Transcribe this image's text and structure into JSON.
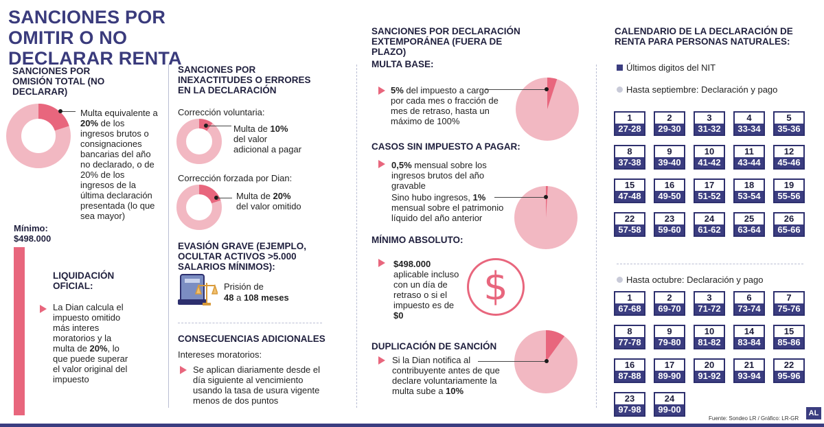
{
  "title": "SANCIONES POR OMITIR O NO DECLARAR RENTA",
  "col1": {
    "heading": "SANCIONES POR OMISIÓN TOTAL (NO DECLARAR)",
    "donut_percent": 20,
    "text_pre": "Multa equivalente a ",
    "text_bold": "20%",
    "text_post": " de los ingresos brutos o consignaciones bancarias del año no declarado, o de 20% de los ingresos de la última declaración presentada (lo que sea mayor)",
    "minimo_label": "Mínimo:",
    "minimo_value": "$498.000",
    "liq_heading": "LIQUIDACIÓN OFICIAL:",
    "liq_pre": "La Dian calcula el impuesto omitido más interes moratorios y la multa de ",
    "liq_bold": "20%",
    "liq_post": ", lo que puede superar el valor original del impuesto"
  },
  "col2": {
    "heading": "SANCIONES POR INEXACTITUDES O ERRORES EN LA DECLARACIÓN",
    "vol_label": "Corrección voluntaria:",
    "vol_percent": 10,
    "vol_pre": "Multa de ",
    "vol_bold": "10%",
    "vol_post": " del valor adicional a pagar",
    "forz_label": "Corrección forzada por Dian:",
    "forz_percent": 20,
    "forz_pre": "Multa de ",
    "forz_bold": "20%",
    "forz_post": " del valor omitido",
    "evasion_heading": "EVASIÓN GRAVE (EJEMPLO, OCULTAR ACTIVOS >5.000 SALARIOS MÍNIMOS):",
    "prision_pre": "Prisión de",
    "prision_b1": "48",
    "prision_mid": " a ",
    "prision_b2": "108 meses",
    "conse_heading": "CONSECUENCIAS ADICIONALES",
    "intereses_label": "Intereses moratorios:",
    "intereses_text": "Se aplican diariamente desde el día siguiente al vencimiento usando la tasa de usura vigente menos de dos puntos"
  },
  "col3": {
    "heading": "SANCIONES POR DECLARACIÓN EXTEMPORÁNEA (FUERA DE PLAZO)",
    "multa_base": "MULTA BASE:",
    "mb_bold": "5%",
    "mb_text": " del impuesto a cargo por cada mes o fracción de mes de retraso, hasta un máximo de 100%",
    "mb_percent": 5,
    "casos_heading": "CASOS SIN IMPUESTO A PAGAR:",
    "c1_bold": "0,5%",
    "c1_text": " mensual sobre los ingresos brutos del año gravable",
    "c2_pre": "Sino hubo ingresos, ",
    "c2_bold": "1%",
    "c2_post": " mensual sobre el patrimonio líquido del año anterior",
    "c2_percent": 1,
    "minimo_heading": "MÍNIMO ABSOLUTO:",
    "min_bold": "$498.000",
    "min_text": " aplicable incluso con un día de retraso o si el impuesto es de ",
    "min_bold2": "$0",
    "dollar": "$",
    "dup_heading": "DUPLICACIÓN DE SANCIÓN",
    "dup_pre": "Si la Dian notifica al contribuyente antes de que declare voluntariamente la multa sube a ",
    "dup_bold": "10%",
    "dup_percent": 10
  },
  "col4": {
    "heading": "CALENDARIO DE LA DECLARACIÓN DE RENTA PARA PERSONAS NATURALES:",
    "legend_nit": "Últimos digitos del NIT",
    "legend_sep": "Hasta septiembre: Declaración y pago",
    "legend_oct": "Hasta octubre: Declaración y pago",
    "sep": [
      {
        "day": "1",
        "nit": "27-28"
      },
      {
        "day": "2",
        "nit": "29-30"
      },
      {
        "day": "3",
        "nit": "31-32"
      },
      {
        "day": "4",
        "nit": "33-34"
      },
      {
        "day": "5",
        "nit": "35-36"
      },
      {
        "day": "8",
        "nit": "37-38"
      },
      {
        "day": "9",
        "nit": "39-40"
      },
      {
        "day": "10",
        "nit": "41-42"
      },
      {
        "day": "11",
        "nit": "43-44"
      },
      {
        "day": "12",
        "nit": "45-46"
      },
      {
        "day": "15",
        "nit": "47-48"
      },
      {
        "day": "16",
        "nit": "49-50"
      },
      {
        "day": "17",
        "nit": "51-52"
      },
      {
        "day": "18",
        "nit": "53-54"
      },
      {
        "day": "19",
        "nit": "55-56"
      },
      {
        "day": "22",
        "nit": "57-58"
      },
      {
        "day": "23",
        "nit": "59-60"
      },
      {
        "day": "24",
        "nit": "61-62"
      },
      {
        "day": "25",
        "nit": "63-64"
      },
      {
        "day": "26",
        "nit": "65-66"
      }
    ],
    "oct": [
      {
        "day": "1",
        "nit": "67-68"
      },
      {
        "day": "2",
        "nit": "69-70"
      },
      {
        "day": "3",
        "nit": "71-72"
      },
      {
        "day": "6",
        "nit": "73-74"
      },
      {
        "day": "7",
        "nit": "75-76"
      },
      {
        "day": "8",
        "nit": "77-78"
      },
      {
        "day": "9",
        "nit": "79-80"
      },
      {
        "day": "10",
        "nit": "81-82"
      },
      {
        "day": "14",
        "nit": "83-84"
      },
      {
        "day": "15",
        "nit": "85-86"
      },
      {
        "day": "16",
        "nit": "87-88"
      },
      {
        "day": "17",
        "nit": "89-90"
      },
      {
        "day": "20",
        "nit": "91-92"
      },
      {
        "day": "21",
        "nit": "93-94"
      },
      {
        "day": "22",
        "nit": "95-96"
      },
      {
        "day": "23",
        "nit": "97-98"
      },
      {
        "day": "24",
        "nit": "99-00"
      }
    ]
  },
  "footer": {
    "source": "Fuente: Sondeo LR / Gráfico: LR-GR",
    "logo": "AL"
  },
  "colors": {
    "navy": "#3b3d80",
    "pink": "#e8667d",
    "light_pink": "#f2b8c2"
  }
}
